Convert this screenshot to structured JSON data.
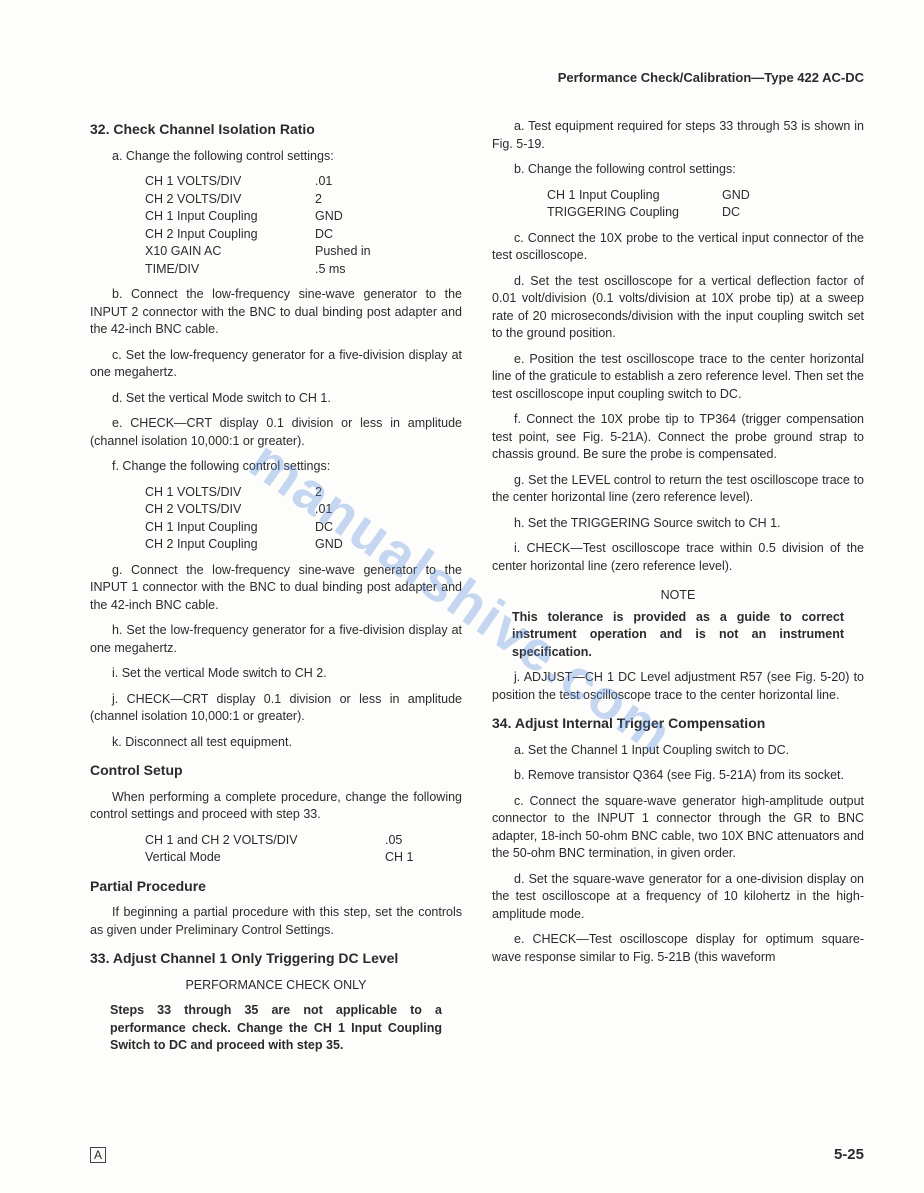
{
  "header": "Performance Check/Calibration—Type 422 AC-DC",
  "watermark": "manualshive.com",
  "footer": {
    "left": "A",
    "right": "5-25"
  },
  "left": {
    "s32": {
      "title": "32.  Check Channel Isolation Ratio",
      "a": "a.  Change the following control settings:",
      "tbl1": [
        {
          "l": "CH 1 VOLTS/DIV",
          "v": ".01"
        },
        {
          "l": "CH 2 VOLTS/DIV",
          "v": "2"
        },
        {
          "l": "CH 1 Input Coupling",
          "v": "GND"
        },
        {
          "l": "CH 2 Input Coupling",
          "v": "DC"
        },
        {
          "l": "X10 GAIN AC",
          "v": "Pushed in"
        },
        {
          "l": "TIME/DIV",
          "v": ".5 ms"
        }
      ],
      "b": "b.  Connect the low-frequency sine-wave generator to the INPUT 2 connector with the BNC to dual binding post adapter and the 42-inch BNC cable.",
      "c": "c.  Set the low-frequency generator for a five-division display at one megahertz.",
      "d": "d.  Set the vertical Mode switch to CH 1.",
      "e": "e.  CHECK—CRT display 0.1 division or less in amplitude (channel isolation 10,000:1 or greater).",
      "f": "f.  Change the following control settings:",
      "tbl2": [
        {
          "l": "CH 1 VOLTS/DIV",
          "v": "2"
        },
        {
          "l": "CH 2 VOLTS/DIV",
          "v": ".01"
        },
        {
          "l": "CH 1 Input Coupling",
          "v": "DC"
        },
        {
          "l": "CH 2 Input Coupling",
          "v": "GND"
        }
      ],
      "g": "g.  Connect the low-frequency sine-wave generator to the INPUT 1 connector with the BNC to dual binding post adapter and the 42-inch BNC cable.",
      "h": "h.  Set the low-frequency generator for a five-division display at one megahertz.",
      "i": "i.  Set the vertical Mode switch to CH 2.",
      "j": "j.  CHECK—CRT display 0.1 division or less in amplitude (channel isolation 10,000:1 or greater).",
      "k": "k.  Disconnect all test equipment."
    },
    "cs": {
      "title": "Control Setup",
      "p": "When performing a complete procedure, change the following control settings and proceed with step 33.",
      "tbl": [
        {
          "l": "CH 1 and CH 2 VOLTS/DIV",
          "v": ".05"
        },
        {
          "l": "Vertical Mode",
          "v": "CH 1"
        }
      ]
    },
    "pp": {
      "title": "Partial Procedure",
      "p": "If beginning a partial procedure with this step, set the controls as given under Preliminary Control Settings."
    },
    "s33": {
      "title": "33.  Adjust Channel 1 Only Triggering DC Level",
      "perf": "PERFORMANCE CHECK ONLY",
      "note": "Steps 33 through 35 are not applicable to a performance check. Change the CH 1 Input Coupling Switch to DC and proceed with step 35."
    }
  },
  "right": {
    "a": "a.  Test equipment required for steps 33 through 53 is shown in Fig. 5-19.",
    "b": "b.  Change the following control settings:",
    "tbl": [
      {
        "l": "CH 1 Input Coupling",
        "v": "GND"
      },
      {
        "l": "TRIGGERING Coupling",
        "v": "DC"
      }
    ],
    "c": "c.  Connect the 10X probe to the vertical input connector of the test oscilloscope.",
    "d": "d.  Set the test oscilloscope for a vertical deflection factor of 0.01 volt/division (0.1 volts/division at 10X probe tip) at a sweep rate of 20 microseconds/division with the input coupling switch set to the ground position.",
    "e": "e.  Position the test oscilloscope trace to the center horizontal line of the graticule to establish a zero reference level. Then set the test oscilloscope input coupling switch to DC.",
    "f": "f.  Connect the 10X probe tip to TP364 (trigger compensation test point, see Fig. 5-21A). Connect the probe ground strap to chassis ground. Be sure the probe is compensated.",
    "g": "g.  Set the LEVEL control to return the test oscilloscope trace to the center horizontal line (zero reference level).",
    "h": "h.  Set the TRIGGERING Source switch to CH 1.",
    "i": "i.  CHECK—Test oscilloscope trace within 0.5 division of the center horizontal line (zero reference level).",
    "note_t": "NOTE",
    "note_b": "This tolerance is provided as a guide to correct instrument operation and is not an instrument specification.",
    "j": "j.  ADJUST—CH 1 DC Level adjustment R57 (see Fig. 5-20) to position the test oscilloscope trace to the center horizontal line.",
    "s34": {
      "title": "34.  Adjust Internal Trigger Compensation",
      "a": "a.  Set the Channel 1 Input Coupling switch to DC.",
      "b": "b.  Remove transistor Q364 (see Fig. 5-21A) from its socket.",
      "c": "c.  Connect the square-wave generator high-amplitude output connector to the INPUT 1 connector through the GR to BNC adapter, 18-inch 50-ohm BNC cable, two 10X BNC attenuators and the 50-ohm BNC termination, in given order.",
      "d": "d.  Set the square-wave generator for a one-division display on the test oscilloscope at a frequency of 10 kilohertz in the high-amplitude mode.",
      "e": "e.  CHECK—Test oscilloscope display for optimum square-wave response similar to Fig. 5-21B (this waveform"
    }
  }
}
